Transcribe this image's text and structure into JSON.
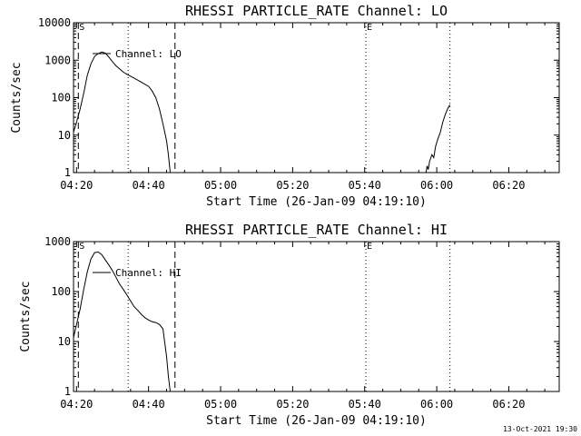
{
  "footer": {
    "timestamp": "13-Oct-2021 19:30"
  },
  "chart_data": [
    {
      "type": "line",
      "title": "RHESSI PARTICLE_RATE Channel: LO",
      "xlabel": "Start Time (26-Jan-09 04:19:10)",
      "ylabel": "Counts/sec",
      "yscale": "log",
      "xlim": [
        "04:19:10",
        "06:34:00"
      ],
      "ylim": [
        1,
        10000
      ],
      "xticks": [
        "04:20",
        "04:40",
        "05:00",
        "05:20",
        "05:40",
        "06:00",
        "06:20"
      ],
      "yticks": [
        "1",
        "10",
        "100",
        "1000",
        "10000"
      ],
      "legend": {
        "label": "Channel: LO",
        "placement": "top-left"
      },
      "markers": [
        {
          "time": "04:20:30",
          "style": "dashed",
          "label": "S"
        },
        {
          "time": "04:34:20",
          "style": "dotted",
          "label": ""
        },
        {
          "time": "04:47:20",
          "style": "dashed",
          "label": ""
        },
        {
          "time": "05:40:20",
          "style": "dotted",
          "label": "E"
        },
        {
          "time": "06:03:40",
          "style": "dotted",
          "label": ""
        }
      ],
      "series": [
        {
          "name": "Channel: LO",
          "segments": [
            {
              "x": [
                "04:19:10",
                "04:20:00",
                "04:21:00",
                "04:22:00",
                "04:23:00",
                "04:24:00",
                "04:25:00",
                "04:26:00",
                "04:27:00",
                "04:28:00",
                "04:29:00",
                "04:30:00",
                "04:31:00",
                "04:32:00",
                "04:33:00",
                "04:34:00",
                "04:36:00",
                "04:38:00",
                "04:40:00",
                "04:41:00",
                "04:42:00",
                "04:43:00",
                "04:44:00",
                "04:45:00",
                "04:45:30",
                "04:46:00"
              ],
              "y": [
                12,
                22,
                50,
                130,
                400,
                800,
                1250,
                1500,
                1650,
                1550,
                1200,
                900,
                700,
                580,
                480,
                420,
                330,
                260,
                200,
                150,
                100,
                50,
                20,
                7,
                3,
                1
              ]
            },
            {
              "x": [
                "05:57:00",
                "05:57:20",
                "05:57:40",
                "05:58:00",
                "05:58:40",
                "05:59:10",
                "05:59:40",
                "06:00:20",
                "06:01:00",
                "06:01:40",
                "06:02:20",
                "06:03:00",
                "06:03:40"
              ],
              "y": [
                1,
                1.5,
                1.2,
                2,
                3,
                2.5,
                5,
                8,
                12,
                22,
                35,
                50,
                65
              ]
            }
          ]
        }
      ]
    },
    {
      "type": "line",
      "title": "RHESSI PARTICLE_RATE Channel: HI",
      "xlabel": "Start Time (26-Jan-09 04:19:10)",
      "ylabel": "Counts/sec",
      "yscale": "log",
      "xlim": [
        "04:19:10",
        "06:34:00"
      ],
      "ylim": [
        1,
        1000
      ],
      "xticks": [
        "04:20",
        "04:40",
        "05:00",
        "05:20",
        "05:40",
        "06:00",
        "06:20"
      ],
      "yticks": [
        "1",
        "10",
        "100",
        "1000"
      ],
      "legend": {
        "label": "Channel: HI",
        "placement": "top-left"
      },
      "markers": [
        {
          "time": "04:20:30",
          "style": "dashed",
          "label": "S"
        },
        {
          "time": "04:34:20",
          "style": "dotted",
          "label": ""
        },
        {
          "time": "04:47:20",
          "style": "dashed",
          "label": ""
        },
        {
          "time": "05:40:20",
          "style": "dotted",
          "label": "E"
        },
        {
          "time": "06:03:40",
          "style": "dotted",
          "label": ""
        }
      ],
      "series": [
        {
          "name": "Channel: HI",
          "segments": [
            {
              "x": [
                "04:19:10",
                "04:20:00",
                "04:21:00",
                "04:22:00",
                "04:23:00",
                "04:24:00",
                "04:25:00",
                "04:26:00",
                "04:27:00",
                "04:28:00",
                "04:29:00",
                "04:30:00",
                "04:31:00",
                "04:32:00",
                "04:33:00",
                "04:34:00",
                "04:35:00",
                "04:36:00",
                "04:37:00",
                "04:38:00",
                "04:39:00",
                "04:40:00",
                "04:41:00",
                "04:42:00",
                "04:43:00",
                "04:44:00",
                "04:45:00",
                "04:45:30",
                "04:46:00"
              ],
              "y": [
                12,
                22,
                45,
                110,
                250,
                450,
                600,
                620,
                550,
                430,
                340,
                260,
                190,
                140,
                110,
                85,
                65,
                50,
                42,
                35,
                30,
                27,
                25,
                24,
                22,
                18,
                5,
                2,
                1
              ]
            }
          ]
        }
      ]
    }
  ]
}
